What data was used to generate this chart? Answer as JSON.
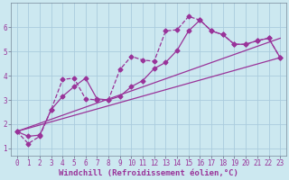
{
  "bg_color": "#cce8f0",
  "grid_color": "#aaccdd",
  "line_color": "#993399",
  "marker_style": "D",
  "marker_size": 2.5,
  "linewidth": 0.9,
  "xlabel": "Windchill (Refroidissement éolien,°C)",
  "xlabel_fontsize": 6.5,
  "tick_fontsize": 5.5,
  "xlim": [
    -0.5,
    23.5
  ],
  "ylim": [
    0.7,
    7.0
  ],
  "xticks": [
    0,
    1,
    2,
    3,
    4,
    5,
    6,
    7,
    8,
    9,
    10,
    11,
    12,
    13,
    14,
    15,
    16,
    17,
    18,
    19,
    20,
    21,
    22,
    23
  ],
  "yticks": [
    1,
    2,
    3,
    4,
    5,
    6
  ],
  "series1_x": [
    0,
    1,
    2,
    3,
    4,
    5,
    6,
    7,
    8,
    9,
    10,
    11,
    12,
    13,
    14,
    15,
    16,
    17,
    18,
    19,
    20,
    21,
    22,
    23
  ],
  "series1_y": [
    1.7,
    1.2,
    1.5,
    2.6,
    3.85,
    3.9,
    3.05,
    3.0,
    3.0,
    4.25,
    4.8,
    4.65,
    4.6,
    5.85,
    5.9,
    6.45,
    6.3,
    5.85,
    5.7,
    5.3,
    5.3,
    5.45,
    5.55,
    4.75
  ],
  "series2_x": [
    0,
    1,
    2,
    3,
    4,
    5,
    6,
    7,
    8,
    9,
    10,
    11,
    12,
    13,
    14,
    15,
    16,
    17,
    18,
    19,
    20,
    21,
    22,
    23
  ],
  "series2_y": [
    1.7,
    1.5,
    1.55,
    2.6,
    3.15,
    3.55,
    3.9,
    3.05,
    3.0,
    3.15,
    3.55,
    3.8,
    4.3,
    4.55,
    5.05,
    5.85,
    6.3,
    5.85,
    5.7,
    5.3,
    5.3,
    5.45,
    5.55,
    4.75
  ],
  "trend1_x": [
    0,
    23
  ],
  "trend1_y": [
    1.7,
    4.75
  ],
  "trend2_x": [
    0,
    23
  ],
  "trend2_y": [
    1.7,
    5.55
  ]
}
